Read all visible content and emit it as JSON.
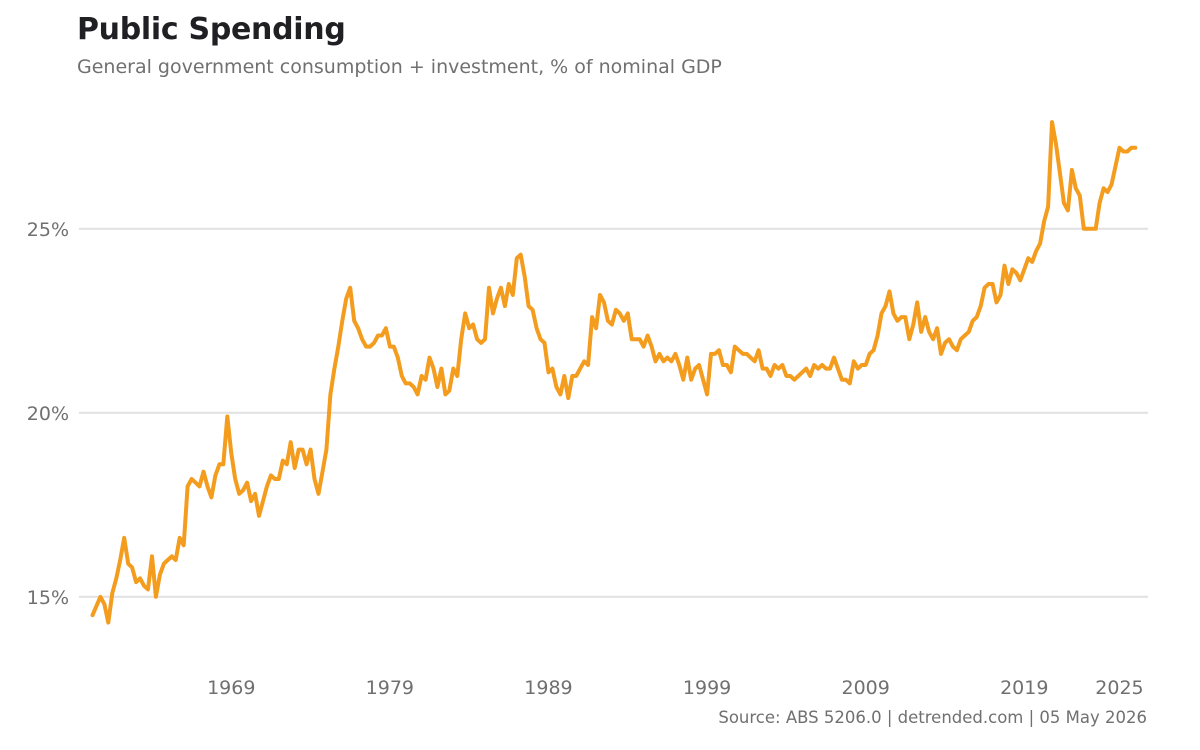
{
  "header": {
    "title": "Public Spending",
    "subtitle": "General government consumption + investment, % of nominal GDP"
  },
  "footer": {
    "source": "Source: ABS 5206.0 | detrended.com | 05 May 2026"
  },
  "colors": {
    "line": "#F39C1E",
    "grid": "#E1E1E1",
    "text": "#707070",
    "title": "#1F1F24"
  },
  "chart_data": {
    "type": "line",
    "title": "Public Spending",
    "subtitle": "General government consumption + investment, % of nominal GDP",
    "xlabel": "",
    "ylabel": "",
    "unit": "% of nominal GDP",
    "xlim": [
      1959.4,
      2026.8
    ],
    "ylim": [
      13.5,
      28.5
    ],
    "grid": true,
    "legend": "none",
    "x_ticks": [
      {
        "value": 1969,
        "label": "1969"
      },
      {
        "value": 1979,
        "label": "1979"
      },
      {
        "value": 1989,
        "label": "1989"
      },
      {
        "value": 1999,
        "label": "1999"
      },
      {
        "value": 2009,
        "label": "2009"
      },
      {
        "value": 2019,
        "label": "2019"
      },
      {
        "value": 2025,
        "label": "2025"
      }
    ],
    "y_ticks": [
      {
        "value": 15,
        "label": "15%"
      },
      {
        "value": 20,
        "label": "20%"
      },
      {
        "value": 25,
        "label": "25%"
      }
    ],
    "series": [
      {
        "name": "",
        "color": "#F39C1E",
        "x": [
          1960.25,
          1960.75,
          1961.0,
          1961.25,
          1961.5,
          1961.75,
          1962.0,
          1962.25,
          1962.5,
          1962.75,
          1963.0,
          1963.25,
          1963.5,
          1963.75,
          1964.0,
          1964.25,
          1964.5,
          1964.75,
          1965.0,
          1965.25,
          1965.5,
          1965.75,
          1966.0,
          1966.25,
          1966.5,
          1966.75,
          1967.0,
          1967.25,
          1967.5,
          1967.75,
          1968.0,
          1968.25,
          1968.5,
          1968.75,
          1969.0,
          1969.25,
          1969.5,
          1969.75,
          1970.0,
          1970.25,
          1970.5,
          1970.75,
          1971.0,
          1971.25,
          1971.5,
          1971.75,
          1972.0,
          1972.25,
          1972.5,
          1972.75,
          1973.0,
          1973.25,
          1973.5,
          1973.75,
          1974.0,
          1974.25,
          1974.5,
          1974.75,
          1975.0,
          1975.25,
          1975.5,
          1975.75,
          1976.0,
          1976.25,
          1976.5,
          1976.75,
          1977.0,
          1977.25,
          1977.5,
          1977.75,
          1978.0,
          1978.25,
          1978.5,
          1978.75,
          1979.0,
          1979.25,
          1979.5,
          1979.75,
          1980.0,
          1980.25,
          1980.5,
          1980.75,
          1981.0,
          1981.25,
          1981.5,
          1981.75,
          1982.0,
          1982.25,
          1982.5,
          1982.75,
          1983.0,
          1983.25,
          1983.5,
          1983.75,
          1984.0,
          1984.25,
          1984.5,
          1984.75,
          1985.0,
          1985.25,
          1985.5,
          1985.75,
          1986.0,
          1986.25,
          1986.5,
          1986.75,
          1987.0,
          1987.25,
          1987.5,
          1987.75,
          1988.0,
          1988.25,
          1988.5,
          1988.75,
          1989.0,
          1989.25,
          1989.5,
          1989.75,
          1990.0,
          1990.25,
          1990.5,
          1990.75,
          1991.0,
          1991.25,
          1991.5,
          1991.75,
          1992.0,
          1992.25,
          1992.5,
          1992.75,
          1993.0,
          1993.25,
          1993.5,
          1993.75,
          1994.0,
          1994.25,
          1994.5,
          1994.75,
          1995.0,
          1995.25,
          1995.5,
          1995.75,
          1996.0,
          1996.25,
          1996.5,
          1996.75,
          1997.0,
          1997.25,
          1997.5,
          1997.75,
          1998.0,
          1998.25,
          1998.5,
          1998.75,
          1999.0,
          1999.25,
          1999.5,
          1999.75,
          2000.0,
          2000.25,
          2000.5,
          2000.75,
          2001.0,
          2001.25,
          2001.5,
          2001.75,
          2002.0,
          2002.25,
          2002.5,
          2002.75,
          2003.0,
          2003.25,
          2003.5,
          2003.75,
          2004.0,
          2004.25,
          2004.5,
          2004.75,
          2005.0,
          2005.25,
          2005.5,
          2005.75,
          2006.0,
          2006.25,
          2006.5,
          2006.75,
          2007.0,
          2007.25,
          2007.5,
          2007.75,
          2008.0,
          2008.25,
          2008.5,
          2008.75,
          2009.0,
          2009.25,
          2009.5,
          2009.75,
          2010.0,
          2010.25,
          2010.5,
          2010.75,
          2011.0,
          2011.25,
          2011.5,
          2011.75,
          2012.0,
          2012.25,
          2012.5,
          2012.75,
          2013.0,
          2013.25,
          2013.5,
          2013.75,
          2014.0,
          2014.25,
          2014.5,
          2014.75,
          2015.0,
          2015.25,
          2015.5,
          2015.75,
          2016.0,
          2016.25,
          2016.5,
          2016.75,
          2017.0,
          2017.25,
          2017.5,
          2017.75,
          2018.0,
          2018.25,
          2018.5,
          2018.75,
          2019.0,
          2019.25,
          2019.5,
          2019.75,
          2020.0,
          2020.25,
          2020.5,
          2020.75,
          2021.0,
          2021.25,
          2021.5,
          2021.75,
          2022.0,
          2022.25,
          2022.5,
          2022.75,
          2023.0,
          2023.25,
          2023.5,
          2023.75,
          2024.0,
          2024.25,
          2024.5,
          2024.75,
          2025.0,
          2025.25,
          2025.5,
          2025.75,
          2026.0
        ],
        "values": [
          14.5,
          15.0,
          14.8,
          14.3,
          15.1,
          15.5,
          16.0,
          16.6,
          15.9,
          15.8,
          15.4,
          15.5,
          15.3,
          15.2,
          16.1,
          15.0,
          15.6,
          15.9,
          16.0,
          16.1,
          16.0,
          16.6,
          16.4,
          18.0,
          18.2,
          18.1,
          18.0,
          18.4,
          18.0,
          17.7,
          18.3,
          18.6,
          18.6,
          19.9,
          18.9,
          18.2,
          17.8,
          17.9,
          18.1,
          17.6,
          17.8,
          17.2,
          17.6,
          18.0,
          18.3,
          18.2,
          18.2,
          18.7,
          18.6,
          19.2,
          18.5,
          19.0,
          19.0,
          18.6,
          19.0,
          18.2,
          17.8,
          18.4,
          19.0,
          20.5,
          21.2,
          21.8,
          22.5,
          23.1,
          23.4,
          22.5,
          22.3,
          22.0,
          21.8,
          21.8,
          21.9,
          22.1,
          22.1,
          22.3,
          21.8,
          21.8,
          21.5,
          21.0,
          20.8,
          20.8,
          20.7,
          20.5,
          21.0,
          20.9,
          21.5,
          21.2,
          20.7,
          21.2,
          20.5,
          20.6,
          21.2,
          21.0,
          22.0,
          22.7,
          22.3,
          22.4,
          22.0,
          21.9,
          22.0,
          23.4,
          22.7,
          23.1,
          23.4,
          22.9,
          23.5,
          23.2,
          24.2,
          24.3,
          23.7,
          22.9,
          22.8,
          22.3,
          22.0,
          21.9,
          21.1,
          21.2,
          20.7,
          20.5,
          21.0,
          20.4,
          21.0,
          21.0,
          21.2,
          21.4,
          21.3,
          22.6,
          22.3,
          23.2,
          23.0,
          22.5,
          22.4,
          22.8,
          22.7,
          22.5,
          22.7,
          22.0,
          22.0,
          22.0,
          21.8,
          22.1,
          21.8,
          21.4,
          21.6,
          21.4,
          21.5,
          21.4,
          21.6,
          21.3,
          20.9,
          21.5,
          20.9,
          21.2,
          21.3,
          20.9,
          20.5,
          21.6,
          21.6,
          21.7,
          21.3,
          21.3,
          21.1,
          21.8,
          21.7,
          21.6,
          21.6,
          21.5,
          21.4,
          21.7,
          21.2,
          21.2,
          21.0,
          21.3,
          21.2,
          21.3,
          21.0,
          21.0,
          20.9,
          21.0,
          21.1,
          21.2,
          21.0,
          21.3,
          21.2,
          21.3,
          21.2,
          21.2,
          21.5,
          21.2,
          20.9,
          20.9,
          20.8,
          21.4,
          21.2,
          21.3,
          21.3,
          21.6,
          21.7,
          22.1,
          22.7,
          22.9,
          23.3,
          22.7,
          22.5,
          22.6,
          22.6,
          22.0,
          22.4,
          23.0,
          22.2,
          22.6,
          22.2,
          22.0,
          22.3,
          21.6,
          21.9,
          22.0,
          21.8,
          21.7,
          22.0,
          22.1,
          22.2,
          22.5,
          22.6,
          22.9,
          23.4,
          23.5,
          23.5,
          23.0,
          23.2,
          24.0,
          23.5,
          23.9,
          23.8,
          23.6,
          23.9,
          24.2,
          24.1,
          24.4,
          24.6,
          25.2,
          25.6,
          27.9,
          27.3,
          26.5,
          25.7,
          25.5,
          26.6,
          26.1,
          25.9,
          25.0,
          25.0,
          25.0,
          25.0,
          25.7,
          26.1,
          26.0,
          26.2,
          26.7,
          27.2,
          27.1,
          27.1,
          27.2,
          27.2
        ]
      }
    ]
  }
}
